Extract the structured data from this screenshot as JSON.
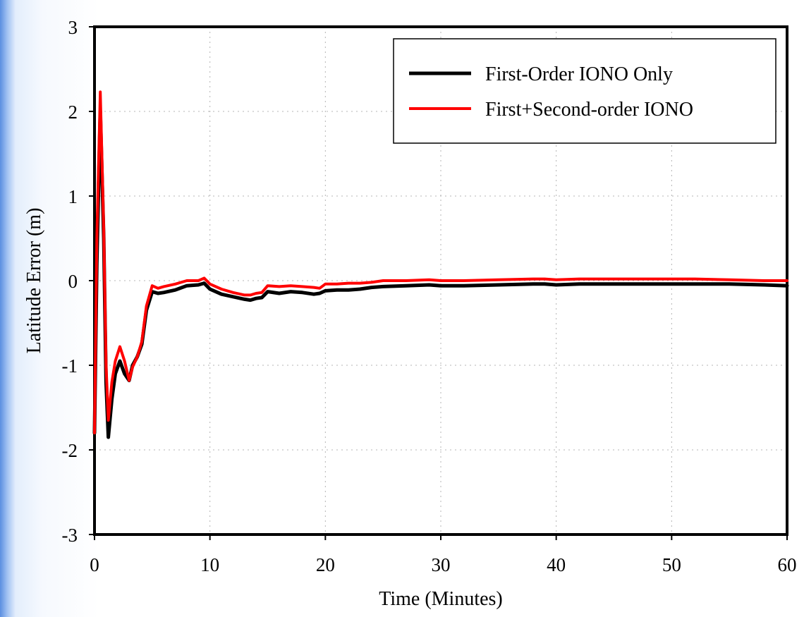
{
  "chart_data": {
    "type": "line",
    "title": "",
    "xlabel": "Time (Minutes)",
    "ylabel": "Latitude Error (m)",
    "xlim": [
      0,
      60
    ],
    "ylim": [
      -3,
      3
    ],
    "xticks": [
      0,
      10,
      20,
      30,
      40,
      50,
      60
    ],
    "yticks": [
      -3,
      -2,
      -1,
      0,
      1,
      2,
      3
    ],
    "grid": true,
    "legend_position": "top-right",
    "series": [
      {
        "name": "First-Order IONO Only",
        "color": "#000000",
        "x": [
          0,
          0.2,
          0.5,
          0.8,
          1.0,
          1.2,
          1.5,
          1.8,
          2.2,
          2.6,
          3.0,
          3.3,
          3.7,
          4.1,
          4.5,
          5.0,
          5.5,
          6.0,
          7.0,
          8.0,
          9.0,
          9.5,
          10.0,
          11.0,
          12.0,
          13.0,
          13.5,
          14.0,
          14.5,
          15.0,
          16.0,
          17.0,
          18.0,
          19.0,
          19.5,
          20.0,
          21.0,
          22.0,
          23.0,
          24.0,
          25.0,
          27.0,
          29.0,
          30.0,
          32.0,
          35.0,
          38.0,
          39.0,
          40.0,
          42.0,
          45.0,
          48.0,
          50.0,
          52.0,
          55.0,
          58.0,
          60.0
        ],
        "y": [
          -1.8,
          0.2,
          2.0,
          0.5,
          -1.2,
          -1.85,
          -1.4,
          -1.1,
          -0.95,
          -1.1,
          -1.18,
          -1.0,
          -0.9,
          -0.75,
          -0.35,
          -0.13,
          -0.15,
          -0.14,
          -0.11,
          -0.06,
          -0.05,
          -0.03,
          -0.1,
          -0.16,
          -0.19,
          -0.22,
          -0.23,
          -0.21,
          -0.2,
          -0.13,
          -0.15,
          -0.13,
          -0.14,
          -0.16,
          -0.15,
          -0.12,
          -0.11,
          -0.11,
          -0.1,
          -0.08,
          -0.07,
          -0.06,
          -0.05,
          -0.06,
          -0.06,
          -0.05,
          -0.04,
          -0.04,
          -0.05,
          -0.04,
          -0.04,
          -0.04,
          -0.04,
          -0.04,
          -0.04,
          -0.05,
          -0.06
        ]
      },
      {
        "name": "First+Second-order IONO",
        "color": "#ff0000",
        "x": [
          0,
          0.2,
          0.5,
          0.8,
          1.0,
          1.2,
          1.5,
          1.8,
          2.2,
          2.6,
          3.0,
          3.3,
          3.7,
          4.1,
          4.5,
          5.0,
          5.5,
          6.0,
          7.0,
          8.0,
          9.0,
          9.5,
          10.0,
          11.0,
          12.0,
          13.0,
          13.5,
          14.0,
          14.5,
          15.0,
          16.0,
          17.0,
          18.0,
          19.0,
          19.5,
          20.0,
          21.0,
          22.0,
          23.0,
          24.0,
          25.0,
          27.0,
          29.0,
          30.0,
          32.0,
          35.0,
          38.0,
          39.0,
          40.0,
          42.0,
          45.0,
          48.0,
          50.0,
          52.0,
          55.0,
          58.0,
          60.0
        ],
        "y": [
          -1.8,
          0.5,
          2.23,
          0.6,
          -1.0,
          -1.65,
          -1.2,
          -0.95,
          -0.78,
          -0.95,
          -1.18,
          -1.02,
          -0.9,
          -0.72,
          -0.3,
          -0.06,
          -0.09,
          -0.07,
          -0.04,
          0.0,
          0.0,
          0.03,
          -0.04,
          -0.1,
          -0.14,
          -0.17,
          -0.17,
          -0.15,
          -0.14,
          -0.06,
          -0.07,
          -0.06,
          -0.07,
          -0.08,
          -0.09,
          -0.04,
          -0.04,
          -0.03,
          -0.03,
          -0.02,
          0.0,
          0.0,
          0.01,
          0.0,
          0.0,
          0.01,
          0.02,
          0.02,
          0.01,
          0.02,
          0.02,
          0.02,
          0.02,
          0.02,
          0.01,
          0.0,
          0.0
        ]
      }
    ]
  }
}
